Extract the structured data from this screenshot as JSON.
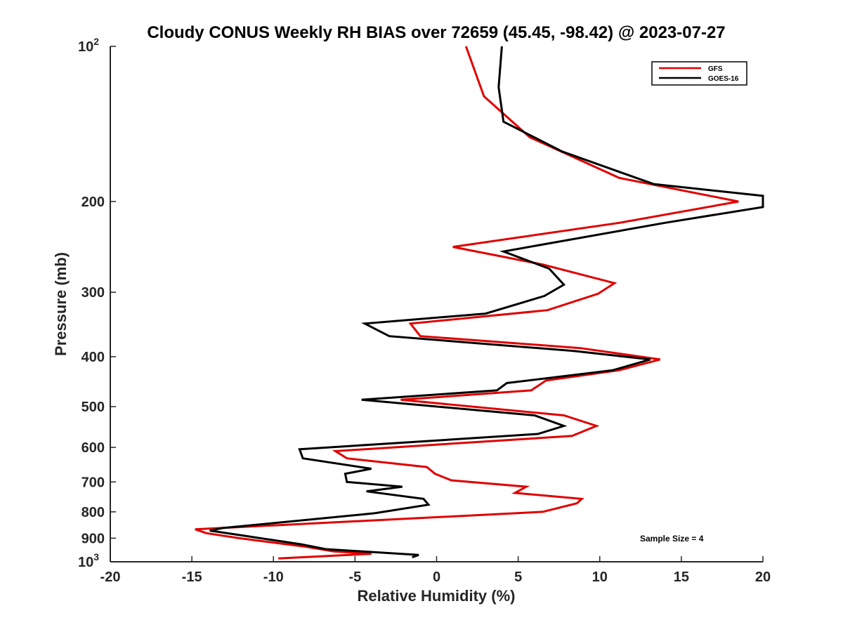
{
  "chart_data": {
    "type": "line",
    "title": "Cloudy CONUS Weekly RH BIAS over 72659 (45.45, -98.42) @ 2023-07-27",
    "xlabel": "Relative Humidity (%)",
    "ylabel": "Pressure (mb)",
    "xlim": [
      -20,
      20
    ],
    "ylim": [
      100,
      1000
    ],
    "y_scale": "log",
    "y_reversed": true,
    "x_ticks": [
      "-20",
      "-15",
      "-10",
      "-5",
      "0",
      "5",
      "10",
      "15",
      "20"
    ],
    "y_ticks": [
      {
        "value": 100,
        "base": "10",
        "exp": "2"
      },
      {
        "value": 200,
        "label": "200"
      },
      {
        "value": 300,
        "label": "300"
      },
      {
        "value": 400,
        "label": "400"
      },
      {
        "value": 500,
        "label": "500"
      },
      {
        "value": 600,
        "label": "600"
      },
      {
        "value": 700,
        "label": "700"
      },
      {
        "value": 800,
        "label": "800"
      },
      {
        "value": 900,
        "label": "900"
      },
      {
        "value": 1000,
        "base": "10",
        "exp": "3"
      }
    ],
    "grid": false,
    "legend_position": "top-right",
    "annotation": "Sample Size = 4",
    "series": [
      {
        "name": "GFS",
        "color": "#e00000",
        "points": [
          [
            1.8,
            100
          ],
          [
            2.9,
            125
          ],
          [
            5.7,
            150
          ],
          [
            11.2,
            180
          ],
          [
            18.5,
            200
          ],
          [
            11.2,
            220
          ],
          [
            1.0,
            245
          ],
          [
            6.5,
            265
          ],
          [
            10.9,
            288
          ],
          [
            9.9,
            302
          ],
          [
            6.8,
            325
          ],
          [
            -1.6,
            345
          ],
          [
            -1.0,
            365
          ],
          [
            8.8,
            385
          ],
          [
            13.7,
            405
          ],
          [
            11.2,
            425
          ],
          [
            6.7,
            445
          ],
          [
            5.8,
            465
          ],
          [
            -2.2,
            485
          ],
          [
            7.8,
            520
          ],
          [
            9.8,
            545
          ],
          [
            8.3,
            570
          ],
          [
            -6.2,
            610
          ],
          [
            -5.5,
            630
          ],
          [
            -0.6,
            655
          ],
          [
            -0.1,
            675
          ],
          [
            0.9,
            695
          ],
          [
            5.5,
            715
          ],
          [
            4.8,
            735
          ],
          [
            8.9,
            755
          ],
          [
            8.6,
            770
          ],
          [
            6.5,
            800
          ],
          [
            -14.8,
            865
          ],
          [
            -14.1,
            880
          ],
          [
            -12.1,
            900
          ],
          [
            -8.0,
            935
          ],
          [
            -6.3,
            955
          ],
          [
            -4.0,
            965
          ],
          [
            -9.7,
            985
          ]
        ]
      },
      {
        "name": "GOES-16",
        "color": "#000000",
        "points": [
          [
            4.0,
            100
          ],
          [
            3.8,
            120
          ],
          [
            4.1,
            140
          ],
          [
            7.7,
            160
          ],
          [
            13.3,
            185
          ],
          [
            20.0,
            195
          ],
          [
            20.0,
            205
          ],
          [
            14.0,
            220
          ],
          [
            4.1,
            250
          ],
          [
            6.9,
            270
          ],
          [
            7.8,
            290
          ],
          [
            6.6,
            305
          ],
          [
            3.0,
            330
          ],
          [
            -4.4,
            345
          ],
          [
            -2.9,
            365
          ],
          [
            8.4,
            390
          ],
          [
            13.1,
            405
          ],
          [
            10.8,
            425
          ],
          [
            4.3,
            450
          ],
          [
            3.7,
            465
          ],
          [
            -4.6,
            485
          ],
          [
            6.0,
            520
          ],
          [
            7.8,
            545
          ],
          [
            6.2,
            565
          ],
          [
            -8.4,
            605
          ],
          [
            -8.2,
            630
          ],
          [
            -4.0,
            660
          ],
          [
            -5.6,
            675
          ],
          [
            -5.5,
            700
          ],
          [
            -2.1,
            715
          ],
          [
            -4.3,
            730
          ],
          [
            -0.8,
            755
          ],
          [
            -0.5,
            775
          ],
          [
            -3.8,
            805
          ],
          [
            -13.1,
            860
          ],
          [
            -13.9,
            870
          ],
          [
            -11.8,
            890
          ],
          [
            -8.3,
            925
          ],
          [
            -6.8,
            945
          ],
          [
            -1.1,
            970
          ],
          [
            -1.5,
            980
          ]
        ]
      }
    ]
  }
}
